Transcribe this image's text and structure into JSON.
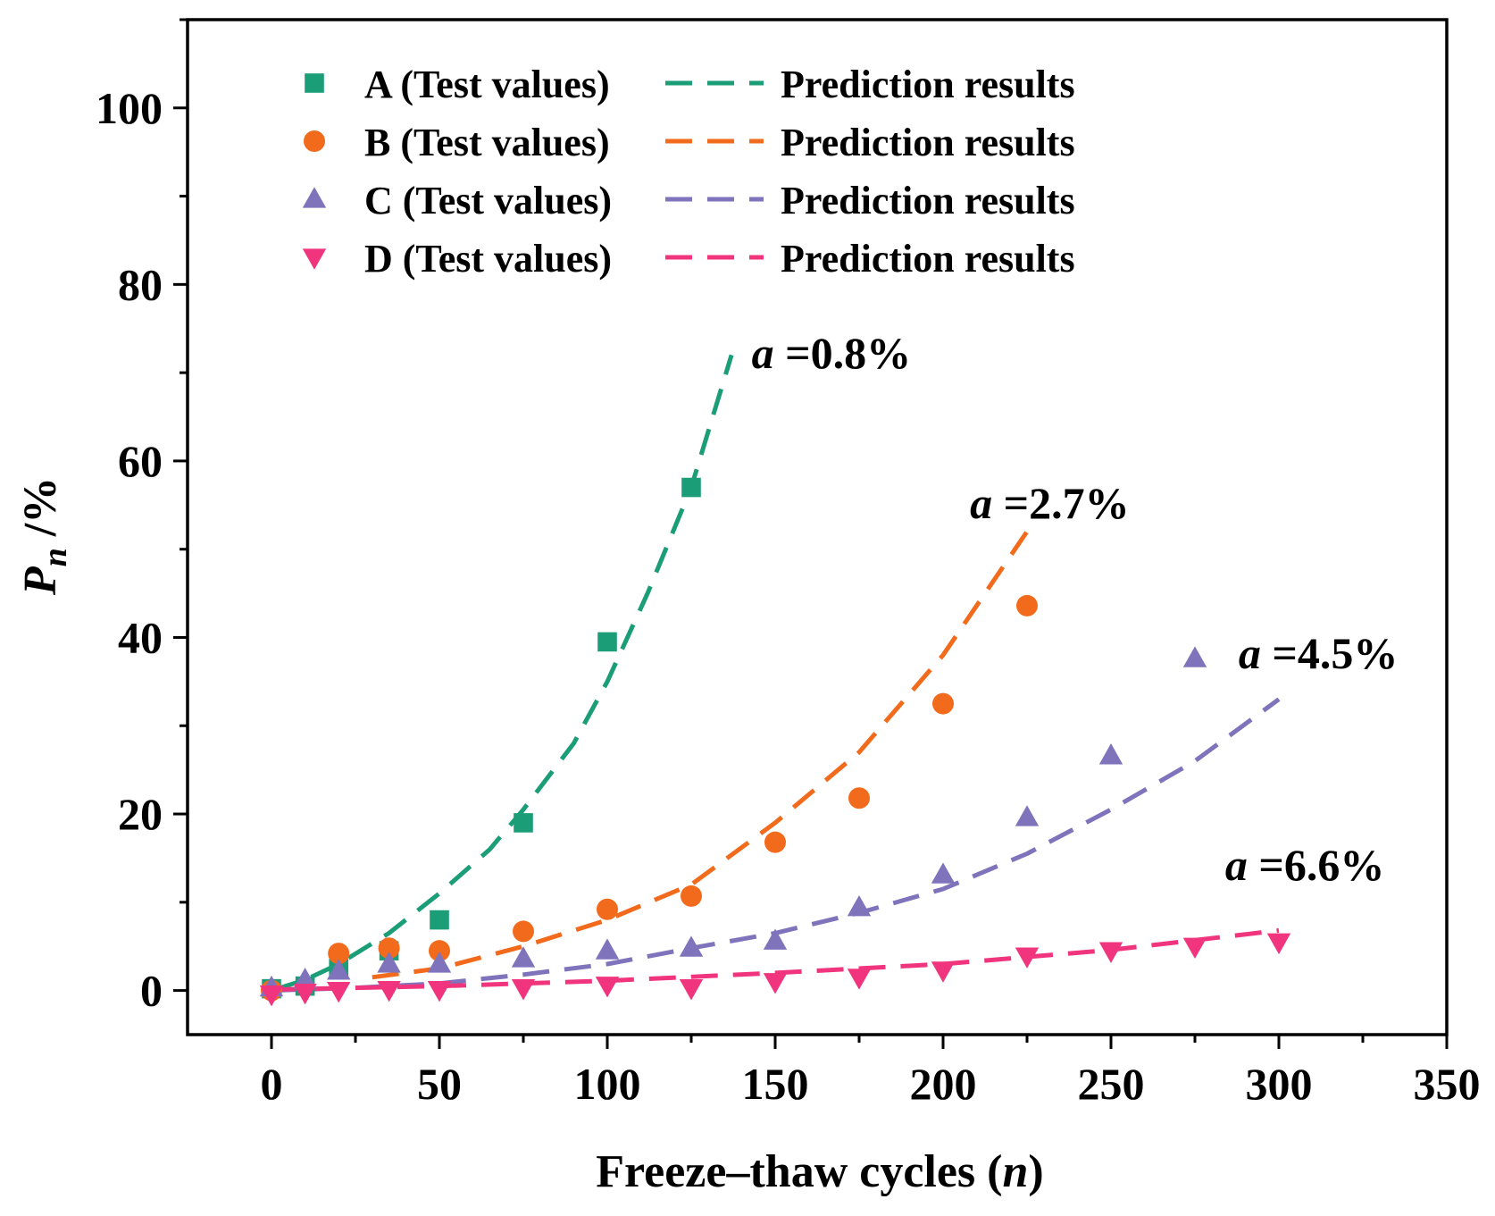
{
  "chart_data": {
    "type": "scatter",
    "title": "",
    "xlabel": {
      "main": "Freeze–thaw cycles (",
      "var": "n",
      "close": ")"
    },
    "ylabel": {
      "main": "P",
      "sub": "n",
      "unit": " /%"
    },
    "xlim": [
      -25,
      350
    ],
    "ylim": [
      -5,
      110
    ],
    "x_ticks": [
      0,
      50,
      100,
      150,
      200,
      250,
      300,
      350
    ],
    "y_ticks": [
      0,
      20,
      40,
      60,
      80,
      100
    ],
    "legend_position": "top-left",
    "series": [
      {
        "name": "A (Test values)",
        "fit_name": "Prediction results",
        "color": "#1b9e77",
        "marker": "square",
        "x": [
          0,
          10,
          20,
          35,
          50,
          75,
          100,
          125
        ],
        "y": [
          0.2,
          0.5,
          2.5,
          4.5,
          8,
          19,
          39.5,
          57
        ],
        "fit": {
          "x": [
            0,
            10,
            20,
            35,
            50,
            65,
            75,
            90,
            100,
            112,
            125,
            137
          ],
          "y": [
            0,
            1.2,
            3,
            6.5,
            11,
            16,
            20.5,
            28,
            35,
            45,
            57,
            72
          ]
        }
      },
      {
        "name": "B (Test values)",
        "fit_name": "Prediction results",
        "color": "#f26b1d",
        "marker": "circle",
        "x": [
          0,
          20,
          35,
          50,
          75,
          100,
          125,
          150,
          175,
          200,
          225
        ],
        "y": [
          0,
          4.2,
          4.8,
          4.5,
          6.7,
          9.2,
          10.7,
          16.8,
          21.8,
          32.5,
          43.6
        ],
        "fit": {
          "x": [
            30,
            50,
            75,
            100,
            125,
            150,
            175,
            200,
            225
          ],
          "y": [
            1.5,
            2.5,
            5,
            8,
            12,
            19,
            27,
            38,
            52
          ]
        }
      },
      {
        "name": "C (Test values)",
        "fit_name": "Prediction results",
        "color": "#7f74bb",
        "marker": "triangle-up",
        "x": [
          0,
          10,
          20,
          35,
          50,
          75,
          100,
          125,
          150,
          175,
          200,
          225,
          250,
          275
        ],
        "y": [
          0.3,
          1.2,
          2.2,
          3.0,
          3.0,
          3.6,
          4.5,
          4.8,
          5.6,
          9.4,
          13.1,
          19.6,
          26.6,
          37.6
        ],
        "fit": {
          "x": [
            0,
            25,
            50,
            75,
            100,
            125,
            150,
            175,
            200,
            225,
            250,
            275,
            300
          ],
          "y": [
            0,
            0.3,
            0.8,
            1.8,
            3,
            4.8,
            6.5,
            8.8,
            11.5,
            15.5,
            20.5,
            26,
            33
          ]
        }
      },
      {
        "name": "D (Test values)",
        "fit_name": "Prediction results",
        "color": "#f0357e",
        "marker": "triangle-down",
        "x": [
          0,
          10,
          20,
          35,
          50,
          75,
          100,
          125,
          150,
          175,
          200,
          225,
          250,
          275,
          300
        ],
        "y": [
          -0.4,
          -0.2,
          0.0,
          0.1,
          0.1,
          0.3,
          0.6,
          0.3,
          1.0,
          1.5,
          2.3,
          3.9,
          4.5,
          5.0,
          5.5
        ],
        "fit": {
          "x": [
            0,
            50,
            100,
            150,
            200,
            250,
            300
          ],
          "y": [
            0.1,
            0.5,
            1.1,
            2.0,
            3.0,
            4.6,
            6.8
          ]
        }
      }
    ],
    "annotations": [
      {
        "var": "a",
        "text": " =0.8%",
        "x": 143,
        "y": 70.5,
        "color_series": 0
      },
      {
        "var": "a",
        "text": " =2.7%",
        "x": 208,
        "y": 53.5,
        "color_series": 1
      },
      {
        "var": "a",
        "text": " =4.5%",
        "x": 288,
        "y": 36.5,
        "color_series": 2
      },
      {
        "var": "a",
        "text": " =6.6%",
        "x": 284,
        "y": 12.5,
        "color_series": 3
      }
    ]
  }
}
